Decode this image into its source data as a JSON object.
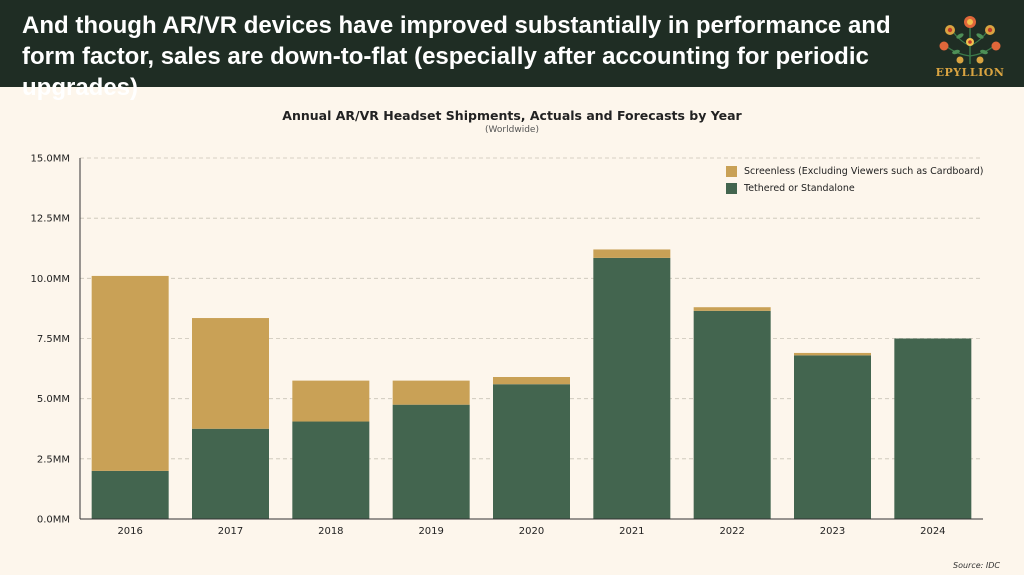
{
  "header": {
    "title": "And though AR/VR devices have improved substantially in performance and form factor, sales are down-to-flat (especially after accounting for periodic upgrades)",
    "logo_text": "EPYLLION"
  },
  "source": "Source: IDC",
  "colors": {
    "screenless": "#c9a156",
    "tethered": "#43654f",
    "header_bg": "#1f2d24",
    "background": "#fdf6ec"
  },
  "chart_data": {
    "type": "bar",
    "stacked": true,
    "title": "Annual AR/VR Headset Shipments, Actuals and Forecasts by Year",
    "subtitle": "(Worldwide)",
    "categories": [
      "2016",
      "2017",
      "2018",
      "2019",
      "2020",
      "2021",
      "2022",
      "2023",
      "2024"
    ],
    "series": [
      {
        "name": "Tethered or Standalone",
        "color": "#43654f",
        "values": [
          2.0,
          3.75,
          4.05,
          4.75,
          5.6,
          10.85,
          8.65,
          6.8,
          7.5
        ]
      },
      {
        "name": "Screenless (Excluding Viewers such as Cardboard)",
        "color": "#c9a156",
        "values": [
          8.1,
          4.6,
          1.7,
          1.0,
          0.3,
          0.35,
          0.15,
          0.1,
          0.0
        ]
      }
    ],
    "ylim": [
      0,
      15
    ],
    "yticks": [
      "0.0MM",
      "2.5MM",
      "5.0MM",
      "7.5MM",
      "10.0MM",
      "12.5MM",
      "15.0MM"
    ],
    "ytick_values": [
      0,
      2.5,
      5,
      7.5,
      10,
      12.5,
      15
    ],
    "grid": true,
    "legend_position": "top-right"
  }
}
